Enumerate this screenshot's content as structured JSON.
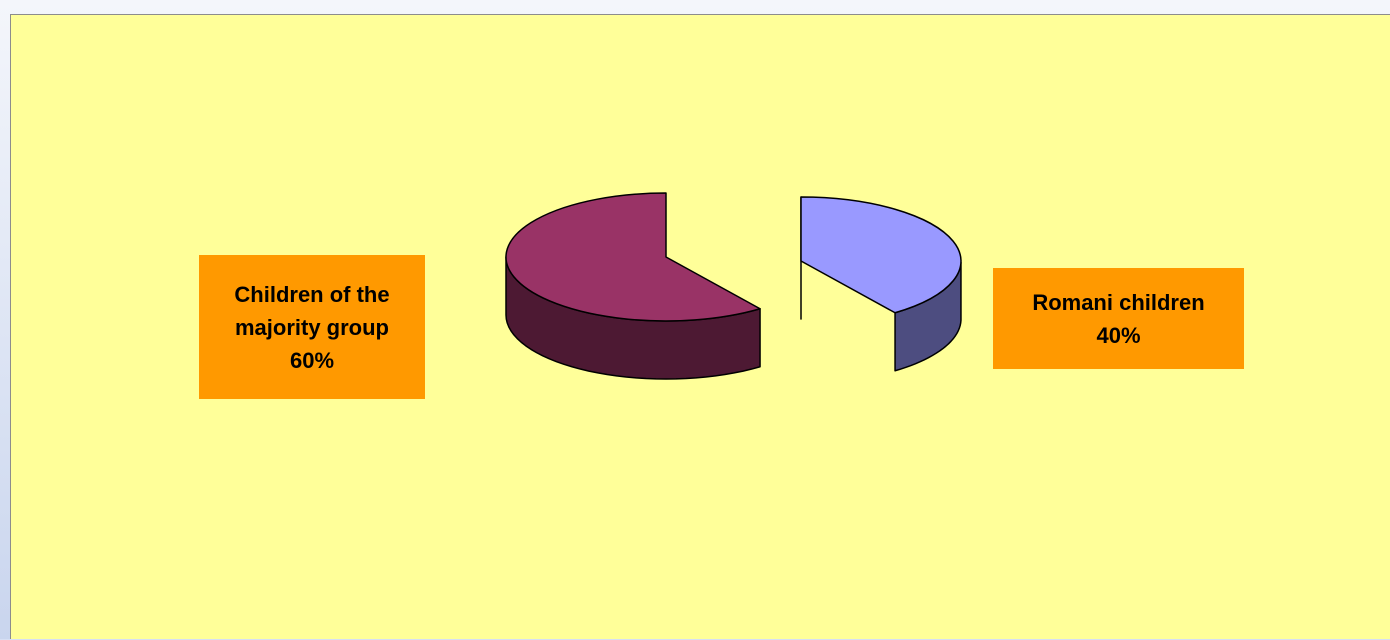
{
  "chart_data": {
    "type": "pie",
    "style": "3d-exploded",
    "slices": [
      {
        "label_lines": [
          "Children of the",
          "majority group"
        ],
        "percent_label": "60%",
        "value": 60,
        "color": "#993366",
        "side_color": "#4d1933"
      },
      {
        "label_lines": [
          "Romani children"
        ],
        "percent_label": "40%",
        "value": 40,
        "color": "#9999ff",
        "side_color": "#4d4d80"
      }
    ],
    "label_background": "#ff9900",
    "plot_background": "#ffff99",
    "legend": "none"
  }
}
